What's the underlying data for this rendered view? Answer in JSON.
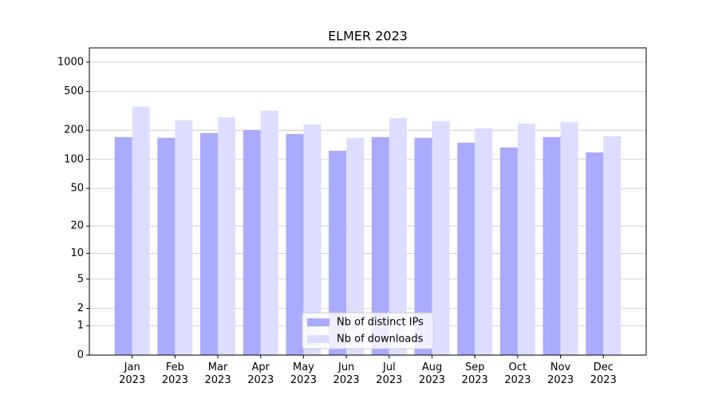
{
  "chart_data": {
    "type": "bar",
    "title": "ELMER 2023",
    "categories": [
      "Jan\n2023",
      "Feb\n2023",
      "Mar\n2023",
      "Apr\n2023",
      "May\n2023",
      "Jun\n2023",
      "Jul\n2023",
      "Aug\n2023",
      "Sep\n2023",
      "Oct\n2023",
      "Nov\n2023",
      "Dec\n2023"
    ],
    "series": [
      {
        "name": "Nb of distinct IPs",
        "color": "#aaaaff",
        "values": [
          170,
          167,
          187,
          201,
          183,
          123,
          170,
          167,
          149,
          133,
          170,
          118
        ]
      },
      {
        "name": "Nb of downloads",
        "color": "#ddddff",
        "values": [
          350,
          253,
          272,
          317,
          230,
          167,
          267,
          248,
          209,
          234,
          243,
          173
        ]
      }
    ],
    "yscale": "log1p",
    "ylim": [
      0,
      1400
    ],
    "yticks": [
      0,
      1,
      2,
      5,
      10,
      20,
      50,
      100,
      200,
      500,
      1000
    ],
    "grid": true,
    "legend": "lower center"
  }
}
